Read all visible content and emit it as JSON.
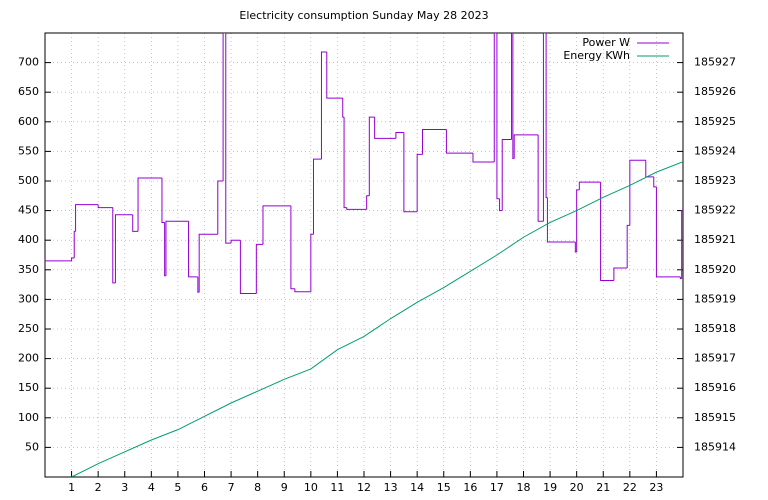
{
  "chart_data": {
    "type": "line",
    "title": "Electricity consumption Sunday May 28 2023",
    "xlim": [
      0,
      24
    ],
    "xticks": [
      1,
      2,
      3,
      4,
      5,
      6,
      7,
      8,
      9,
      10,
      11,
      12,
      13,
      14,
      15,
      16,
      17,
      18,
      19,
      20,
      21,
      22,
      23
    ],
    "ylim": [
      0,
      750
    ],
    "yticks": [
      50,
      100,
      150,
      200,
      250,
      300,
      350,
      400,
      450,
      500,
      550,
      600,
      650,
      700
    ],
    "y2lim": [
      185913,
      185928
    ],
    "y2ticks": [
      185914,
      185915,
      185916,
      185917,
      185918,
      185919,
      185920,
      185921,
      185922,
      185923,
      185924,
      185925,
      185926,
      185927
    ],
    "grid": true,
    "legend": "top-right",
    "series": [
      {
        "name": "Power W",
        "color": "#9400d3",
        "style": "steps",
        "x": [
          0,
          1.0,
          1.1,
          1.15,
          2.0,
          2.55,
          2.65,
          3.3,
          3.5,
          4.4,
          4.5,
          4.55,
          5.4,
          5.75,
          5.8,
          6.5,
          6.7,
          6.8,
          7.0,
          7.35,
          7.95,
          8.2,
          9.25,
          9.4,
          10.0,
          10.1,
          10.4,
          10.6,
          11.2,
          11.25,
          11.35,
          12.1,
          12.2,
          12.4,
          13.2,
          13.5,
          14.0,
          14.2,
          15.1,
          16.1,
          16.9,
          17.0,
          17.1,
          17.2,
          17.55,
          17.6,
          17.65,
          18.55,
          18.75,
          18.85,
          18.9,
          19.95,
          20.0,
          20.1,
          20.9,
          21.4,
          21.9,
          22.0,
          22.6,
          22.9,
          23.0,
          23.9,
          23.95
        ],
        "values": [
          365,
          370,
          415,
          460,
          455,
          328,
          443,
          415,
          505,
          430,
          340,
          432,
          338,
          312,
          410,
          500,
          750,
          395,
          400,
          310,
          393,
          458,
          318,
          313,
          410,
          537,
          718,
          640,
          608,
          455,
          452,
          475,
          608,
          572,
          582,
          448,
          545,
          587,
          547,
          532,
          750,
          470,
          450,
          570,
          750,
          538,
          578,
          432,
          750,
          472,
          397,
          380,
          485,
          498,
          332,
          353,
          425,
          535,
          507,
          490,
          338,
          335,
          450
        ]
      },
      {
        "name": "Energy KWh",
        "color": "#009e73",
        "axis": "y2",
        "style": "lines",
        "x": [
          1,
          2,
          3,
          4,
          5,
          6,
          7,
          8,
          9,
          10,
          11,
          12,
          13,
          14,
          15,
          16,
          17,
          18,
          19,
          20,
          21,
          22,
          23,
          24
        ],
        "values": [
          185913.0,
          185913.45,
          185913.85,
          185914.25,
          185914.6,
          185915.05,
          185915.5,
          185915.9,
          185916.3,
          185916.65,
          185917.3,
          185917.75,
          185918.35,
          185918.9,
          185919.4,
          185919.95,
          185920.5,
          185921.1,
          185921.6,
          185922.0,
          185922.45,
          185922.85,
          185923.3,
          185923.65
        ]
      }
    ]
  }
}
